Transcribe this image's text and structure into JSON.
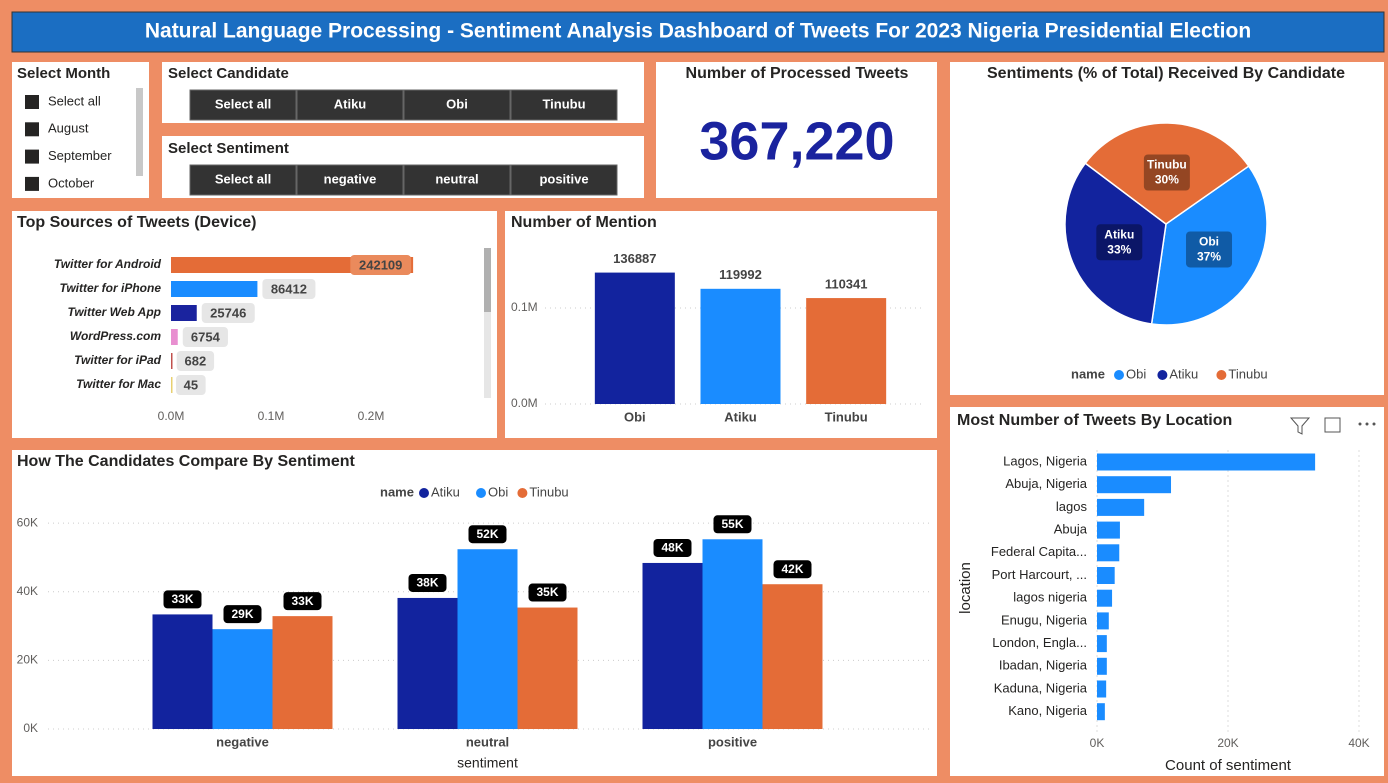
{
  "title": "Natural Language Processing - Sentiment Analysis Dashboard of Tweets For 2023 Nigeria Presidential Election",
  "slicers": [
    {
      "title": "Select Month",
      "items": [
        "Select all",
        "August",
        "September",
        "October"
      ]
    },
    {
      "title": "Select Candidate",
      "items": [
        "Select all",
        "Atiku",
        "Obi",
        "Tinubu"
      ]
    },
    {
      "title": "Select Sentiment",
      "items": [
        "Select all",
        "negative",
        "neutral",
        "positive"
      ]
    }
  ],
  "kpi": {
    "title": "Number of Processed Tweets",
    "value": "367,220"
  },
  "chart_data": [
    {
      "type": "hbar",
      "title": "Top Sources of Tweets (Device)",
      "categories": [
        "Twitter for Android",
        "Twitter for iPhone",
        "Twitter Web App",
        "WordPress.com",
        "Twitter for iPad",
        "Twitter for Mac"
      ],
      "values": [
        242109,
        86412,
        25746,
        6754,
        682,
        45
      ],
      "colors": [
        "#e46c37",
        "#1a8cff",
        "#1a239e",
        "#e88fd0",
        "#c0504d",
        "#e8d070"
      ],
      "xlim": [
        0,
        300000
      ],
      "xticks": [
        {
          "value": 0,
          "label": "0.0M"
        },
        {
          "value": 100000,
          "label": "0.1M"
        },
        {
          "value": 200000,
          "label": "0.2M"
        }
      ],
      "grid": false
    },
    {
      "type": "bar",
      "title": "Number of Mention",
      "categories": [
        "Obi",
        "Atiku",
        "Tinubu"
      ],
      "values": [
        136887,
        119992,
        110341
      ],
      "colors": [
        "#12239e",
        "#1a8cff",
        "#e46c37"
      ],
      "ylim": [
        0,
        150000
      ],
      "yticks": [
        {
          "value": 0,
          "label": "0.0M"
        },
        {
          "value": 100000,
          "label": "0.1M"
        }
      ],
      "grid": true
    },
    {
      "type": "pie",
      "title": "Sentiments (% of Total) Received By Candidate",
      "categories": [
        "Obi",
        "Atiku",
        "Tinubu"
      ],
      "values": [
        37,
        33,
        30
      ],
      "value_labels": [
        "37%",
        "33%",
        "30%"
      ],
      "colors": [
        "#1a8cff",
        "#12239e",
        "#e46c37"
      ],
      "legend_title": "name"
    },
    {
      "type": "grouped_bar",
      "title": "How The Candidates Compare By Sentiment",
      "x_label": "sentiment",
      "legend_title": "name",
      "categories": [
        "negative",
        "neutral",
        "positive"
      ],
      "series": [
        {
          "name": "Atiku",
          "color": "#12239e",
          "values": [
            33400,
            38200,
            48400
          ],
          "value_labels": [
            "33K",
            "38K",
            "48K"
          ]
        },
        {
          "name": "Obi",
          "color": "#1a8cff",
          "values": [
            29100,
            52400,
            55300
          ],
          "value_labels": [
            "29K",
            "52K",
            "55K"
          ]
        },
        {
          "name": "Tinubu",
          "color": "#e46c37",
          "values": [
            32900,
            35400,
            42200
          ],
          "value_labels": [
            "33K",
            "35K",
            "42K"
          ]
        }
      ],
      "ylim": [
        0,
        65000
      ],
      "yticks": [
        {
          "value": 0,
          "label": "0K"
        },
        {
          "value": 20000,
          "label": "20K"
        },
        {
          "value": 40000,
          "label": "40K"
        },
        {
          "value": 60000,
          "label": "60K"
        }
      ],
      "grid": true
    },
    {
      "type": "hbar",
      "title": "Most Number of Tweets By Location",
      "x_label": "Count of sentiment",
      "y_label": "location",
      "categories": [
        "Lagos, Nigeria",
        "Abuja, Nigeria",
        "lagos",
        "Abuja",
        "Federal Capita...",
        "Port Harcourt, ...",
        "lagos nigeria",
        "Enugu, Nigeria",
        "London, Engla...",
        "Ibadan, Nigeria",
        "Kaduna, Nigeria",
        "Kano, Nigeria"
      ],
      "values": [
        33300,
        11300,
        7200,
        3500,
        3400,
        2700,
        2300,
        1800,
        1500,
        1500,
        1400,
        1200
      ],
      "color": "#1a8cff",
      "xlim": [
        0,
        40000
      ],
      "xticks": [
        {
          "value": 0,
          "label": "0K"
        },
        {
          "value": 20000,
          "label": "20K"
        },
        {
          "value": 40000,
          "label": "40K"
        }
      ],
      "grid": true
    }
  ]
}
